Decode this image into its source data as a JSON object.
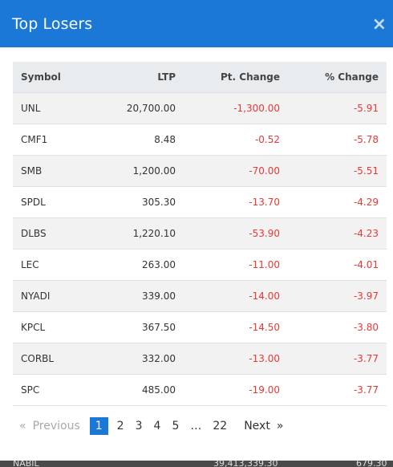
{
  "modal": {
    "title": "Top Losers",
    "close_label": "×"
  },
  "table": {
    "headers": [
      "Symbol",
      "LTP",
      "Pt. Change",
      "% Change"
    ],
    "rows": [
      [
        "UNL",
        "20,700.00",
        "-1,300.00",
        "-5.91"
      ],
      [
        "CMF1",
        "8.48",
        "-0.52",
        "-5.78"
      ],
      [
        "SMB",
        "1,200.00",
        "-70.00",
        "-5.51"
      ],
      [
        "SPDL",
        "305.30",
        "-13.70",
        "-4.29"
      ],
      [
        "DLBS",
        "1,220.10",
        "-53.90",
        "-4.23"
      ],
      [
        "LEC",
        "263.00",
        "-11.00",
        "-4.01"
      ],
      [
        "NYADI",
        "339.00",
        "-14.00",
        "-3.97"
      ],
      [
        "KPCL",
        "367.50",
        "-14.50",
        "-3.80"
      ],
      [
        "CORBL",
        "332.00",
        "-13.00",
        "-3.77"
      ],
      [
        "SPC",
        "485.00",
        "-19.00",
        "-3.77"
      ]
    ]
  },
  "pagination": {
    "prev_arrow": "«",
    "prev_label": "Previous",
    "pages": [
      "1",
      "2",
      "3",
      "4",
      "5",
      "…",
      "22"
    ],
    "active_page": "1",
    "next_label": "Next",
    "next_arrow": "»"
  },
  "backdrop": {
    "row_symbol": "NABIL",
    "row_value": "39,413,339.30",
    "row_change": "679.30"
  },
  "colors": {
    "header_bg": "#1b78d6",
    "negative": "#e53935",
    "active_page_bg": "#1b78d6"
  }
}
